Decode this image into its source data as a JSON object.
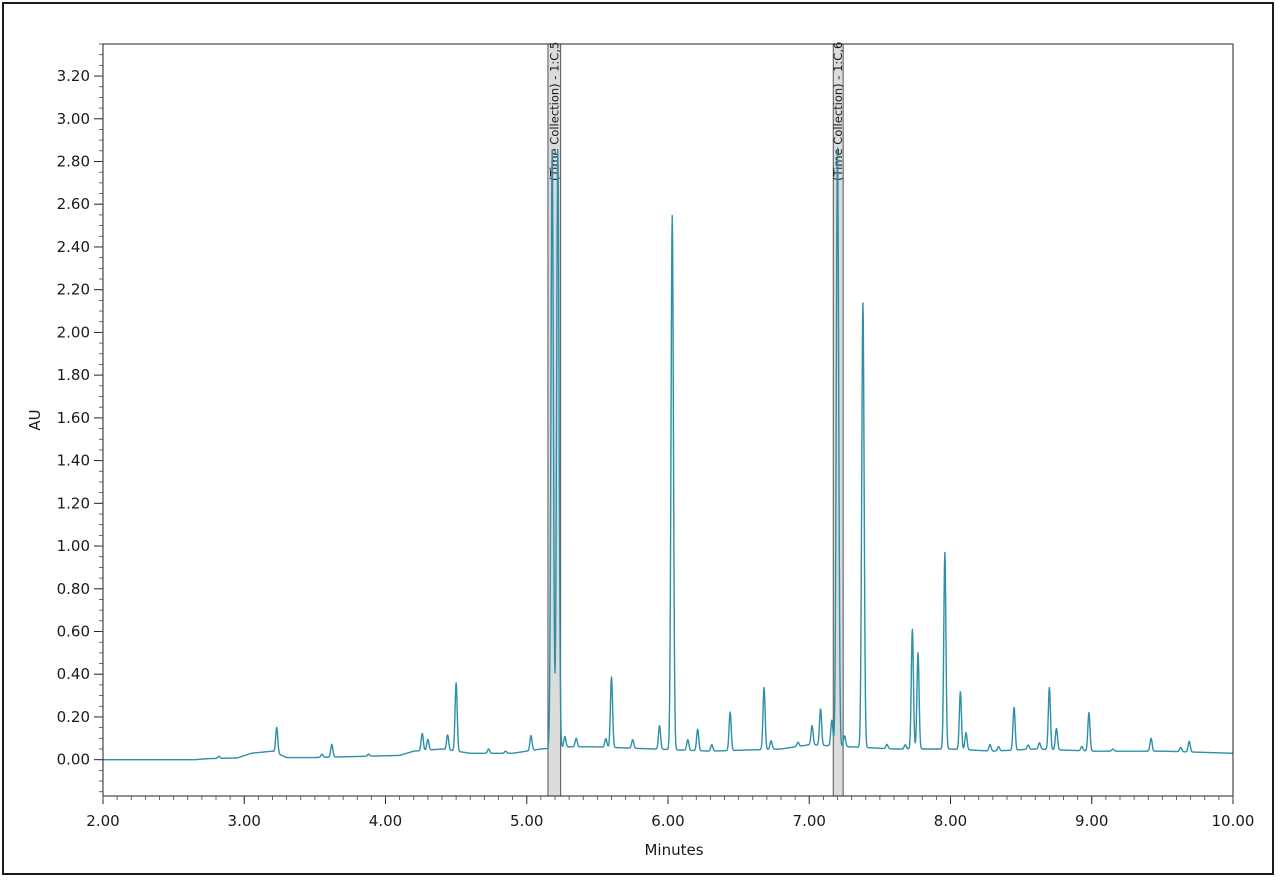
{
  "chart_data": {
    "type": "line",
    "xlabel": "Minutes",
    "ylabel": "AU",
    "xlim": [
      2.0,
      10.0
    ],
    "ylim": [
      -0.17,
      3.35
    ],
    "x_ticks": [
      "2.00",
      "3.00",
      "4.00",
      "5.00",
      "6.00",
      "7.00",
      "8.00",
      "9.00",
      "10.00"
    ],
    "y_ticks": [
      "0.00",
      "0.20",
      "0.40",
      "0.60",
      "0.80",
      "1.00",
      "1.20",
      "1.40",
      "1.60",
      "1.80",
      "2.00",
      "2.20",
      "2.40",
      "2.60",
      "2.80",
      "3.00",
      "3.20"
    ],
    "series": [
      {
        "color": "#2d8fa8",
        "baseline": [
          [
            2.0,
            0.0
          ],
          [
            2.65,
            0.0
          ],
          [
            2.75,
            0.005
          ],
          [
            2.95,
            0.008
          ],
          [
            3.05,
            0.03
          ],
          [
            3.2,
            0.04
          ],
          [
            3.3,
            0.01
          ],
          [
            3.5,
            0.01
          ],
          [
            3.8,
            0.015
          ],
          [
            4.1,
            0.02
          ],
          [
            4.2,
            0.04
          ],
          [
            4.4,
            0.05
          ],
          [
            4.6,
            0.03
          ],
          [
            4.9,
            0.03
          ],
          [
            5.1,
            0.05
          ],
          [
            5.3,
            0.06
          ],
          [
            5.5,
            0.06
          ],
          [
            5.9,
            0.05
          ],
          [
            6.3,
            0.04
          ],
          [
            6.8,
            0.05
          ],
          [
            7.0,
            0.07
          ],
          [
            7.3,
            0.06
          ],
          [
            7.6,
            0.05
          ],
          [
            8.0,
            0.05
          ],
          [
            8.3,
            0.04
          ],
          [
            8.6,
            0.05
          ],
          [
            9.0,
            0.04
          ],
          [
            9.5,
            0.04
          ],
          [
            10.0,
            0.03
          ]
        ],
        "peaks": [
          {
            "rt": 2.82,
            "height": 0.01
          },
          {
            "rt": 3.23,
            "height": 0.12
          },
          {
            "rt": 3.55,
            "height": 0.015
          },
          {
            "rt": 3.62,
            "height": 0.06
          },
          {
            "rt": 3.88,
            "height": 0.01
          },
          {
            "rt": 4.26,
            "height": 0.08
          },
          {
            "rt": 4.3,
            "height": 0.05
          },
          {
            "rt": 4.44,
            "height": 0.07
          },
          {
            "rt": 4.5,
            "height": 0.32
          },
          {
            "rt": 4.73,
            "height": 0.02
          },
          {
            "rt": 4.85,
            "height": 0.01
          },
          {
            "rt": 5.03,
            "height": 0.07
          },
          {
            "rt": 5.18,
            "height": 2.8
          },
          {
            "rt": 5.22,
            "height": 2.8
          },
          {
            "rt": 5.27,
            "height": 0.05
          },
          {
            "rt": 5.35,
            "height": 0.04
          },
          {
            "rt": 5.6,
            "height": 0.33
          },
          {
            "rt": 5.56,
            "height": 0.04
          },
          {
            "rt": 5.75,
            "height": 0.04
          },
          {
            "rt": 5.94,
            "height": 0.11
          },
          {
            "rt": 6.03,
            "height": 2.5
          },
          {
            "rt": 6.14,
            "height": 0.05
          },
          {
            "rt": 6.21,
            "height": 0.1
          },
          {
            "rt": 6.31,
            "height": 0.03
          },
          {
            "rt": 6.44,
            "height": 0.18
          },
          {
            "rt": 6.68,
            "height": 0.29
          },
          {
            "rt": 6.73,
            "height": 0.04
          },
          {
            "rt": 6.92,
            "height": 0.02
          },
          {
            "rt": 7.02,
            "height": 0.09
          },
          {
            "rt": 7.08,
            "height": 0.17
          },
          {
            "rt": 7.16,
            "height": 0.12
          },
          {
            "rt": 7.2,
            "height": 2.8
          },
          {
            "rt": 7.25,
            "height": 0.05
          },
          {
            "rt": 7.38,
            "height": 2.08
          },
          {
            "rt": 7.55,
            "height": 0.02
          },
          {
            "rt": 7.68,
            "height": 0.02
          },
          {
            "rt": 7.73,
            "height": 0.56
          },
          {
            "rt": 7.77,
            "height": 0.45
          },
          {
            "rt": 7.96,
            "height": 0.92
          },
          {
            "rt": 8.07,
            "height": 0.27
          },
          {
            "rt": 8.11,
            "height": 0.08
          },
          {
            "rt": 8.28,
            "height": 0.03
          },
          {
            "rt": 8.34,
            "height": 0.02
          },
          {
            "rt": 8.45,
            "height": 0.2
          },
          {
            "rt": 8.55,
            "height": 0.02
          },
          {
            "rt": 8.63,
            "height": 0.03
          },
          {
            "rt": 8.7,
            "height": 0.29
          },
          {
            "rt": 8.75,
            "height": 0.1
          },
          {
            "rt": 8.93,
            "height": 0.02
          },
          {
            "rt": 8.98,
            "height": 0.18
          },
          {
            "rt": 9.15,
            "height": 0.01
          },
          {
            "rt": 9.42,
            "height": 0.06
          },
          {
            "rt": 9.63,
            "height": 0.02
          },
          {
            "rt": 9.69,
            "height": 0.05
          }
        ]
      }
    ],
    "fraction_bands": [
      {
        "label": "(Time Collection) - 1:C,5",
        "x_start": 5.15,
        "x_end": 5.24
      },
      {
        "label": "(Time Collection) - 1:C,6",
        "x_start": 7.17,
        "x_end": 7.24
      }
    ],
    "grid": false
  }
}
